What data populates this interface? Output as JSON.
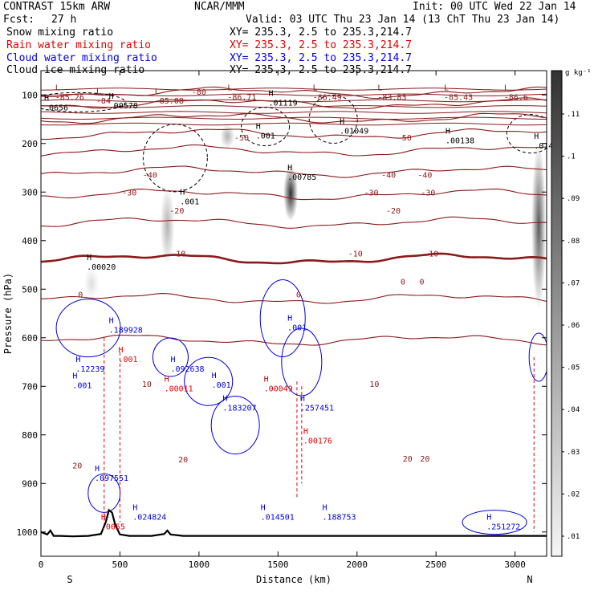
{
  "header": {
    "model": "CONTRAST 15km ARW",
    "fcst_label": "Fcst:",
    "fcst_value": "27 h",
    "center": "NCAR/MMM",
    "init": "Init: 00 UTC Wed 22 Jan 14",
    "valid": "Valid: 03 UTC Thu 23 Jan 14 (13 ChT Thu 23 Jan 14)",
    "fields": [
      {
        "name": "Snow mixing ratio",
        "xy": "",
        "color": "#000000"
      },
      {
        "name": "Rain water mixing ratio",
        "xy": "XY= 235.3, 2.5 to 235.3,214.7",
        "color": "#e00000"
      },
      {
        "name": "Cloud water mixing ratio",
        "xy": "XY= 235.3, 2.5 to 235.3,214.7",
        "color": "#0000dd"
      },
      {
        "name": "Cloud ice mixing ratio",
        "xy": "XY= 235.3, 2.5 to 235.3,214.7",
        "color": "#000000"
      }
    ],
    "snow_xy": "XY= 235.3, 2.5 to 235.3,214.7"
  },
  "colorbar": {
    "unit": "g kg⁻¹",
    "ticks": [
      ".11",
      ".1",
      ".09",
      ".08",
      ".07",
      ".06",
      ".05",
      ".04",
      ".03",
      ".02",
      ".01"
    ]
  },
  "chart_data": {
    "type": "line",
    "title": "",
    "xlabel": "Distance (km)",
    "ylabel": "Pressure (hPa)",
    "xlim": [
      0,
      3200
    ],
    "ylim": [
      1050,
      50
    ],
    "xticks": [
      0,
      500,
      1000,
      1500,
      2000,
      2500,
      3000
    ],
    "yticks": [
      100,
      200,
      300,
      400,
      500,
      600,
      700,
      800,
      900,
      1000
    ],
    "end_labels": {
      "left": "S",
      "right": "N"
    },
    "temperature_contours": {
      "color": "#8b1a1a",
      "levels": [
        {
          "label": "-80",
          "p": 95
        },
        {
          "label": "-70",
          "p": 118
        },
        {
          "label": "-60",
          "p": 148
        },
        {
          "label": "-50",
          "p": 180
        },
        {
          "label": "-40",
          "p": 215
        },
        {
          "label": "-30",
          "p": 258
        },
        {
          "label": "-20",
          "p": 305
        },
        {
          "label": "-10",
          "p": 363
        },
        {
          "label": "0",
          "p": 438,
          "bold": true
        },
        {
          "label": "10",
          "p": 520
        },
        {
          "label": "20",
          "p": 605
        }
      ],
      "label_positions": [
        {
          "text": "-80",
          "x": 1000,
          "p": 93
        },
        {
          "text": "-50",
          "x": 1270,
          "p": 187
        },
        {
          "text": "-50",
          "x": 2300,
          "p": 187
        },
        {
          "text": "-40",
          "x": 690,
          "p": 264
        },
        {
          "text": "-40",
          "x": 2200,
          "p": 264
        },
        {
          "text": "-40",
          "x": 2430,
          "p": 264
        },
        {
          "text": "-30",
          "x": 560,
          "p": 300
        },
        {
          "text": "-30",
          "x": 2090,
          "p": 300
        },
        {
          "text": "-30",
          "x": 2450,
          "p": 300
        },
        {
          "text": "-20",
          "x": 860,
          "p": 338
        },
        {
          "text": "-20",
          "x": 2230,
          "p": 338
        },
        {
          "text": "-10",
          "x": 870,
          "p": 426
        },
        {
          "text": "-10",
          "x": 1990,
          "p": 426
        },
        {
          "text": "-10",
          "x": 2470,
          "p": 426
        },
        {
          "text": "0",
          "x": 2290,
          "p": 484
        },
        {
          "text": "0",
          "x": 2410,
          "p": 484
        },
        {
          "text": "0",
          "x": 250,
          "p": 510
        },
        {
          "text": "0",
          "x": 1630,
          "p": 510
        },
        {
          "text": "10",
          "x": 670,
          "p": 695
        },
        {
          "text": "10",
          "x": 2110,
          "p": 695
        },
        {
          "text": "20",
          "x": 900,
          "p": 850
        },
        {
          "text": "20",
          "x": 230,
          "p": 862
        },
        {
          "text": "20",
          "x": 2320,
          "p": 848
        },
        {
          "text": "20",
          "x": 2430,
          "p": 848
        }
      ]
    },
    "max_labels": [
      {
        "value": "-85.26",
        "x": 90,
        "p": 100,
        "color": "#8b1a1a"
      },
      {
        "value": "-84",
        "x": 350,
        "p": 108,
        "color": "#8b1a1a"
      },
      {
        "value": "-85.08",
        "x": 720,
        "p": 108,
        "color": "#8b1a1a"
      },
      {
        "value": "-86.71",
        "x": 1180,
        "p": 100,
        "color": "#8b1a1a"
      },
      {
        "value": "-86.49",
        "x": 1720,
        "p": 100,
        "color": "#8b1a1a"
      },
      {
        "value": "-83.83",
        "x": 2130,
        "p": 100,
        "color": "#8b1a1a"
      },
      {
        "value": "-85.43",
        "x": 2550,
        "p": 100,
        "color": "#8b1a1a"
      },
      {
        "value": "-86.6",
        "x": 2930,
        "p": 100,
        "color": "#8b1a1a"
      },
      {
        "value": ".0656",
        "x": 20,
        "p": 122,
        "color": "#000000"
      },
      {
        "value": ".00578",
        "x": 430,
        "p": 118,
        "color": "#000000"
      },
      {
        "value": ".01119",
        "x": 1440,
        "p": 112,
        "color": "#000000"
      },
      {
        "value": ".01049",
        "x": 1890,
        "p": 170,
        "color": "#000000"
      },
      {
        "value": ".00138",
        "x": 2560,
        "p": 190,
        "color": "#000000"
      },
      {
        "value": ".001",
        "x": 1360,
        "p": 180,
        "color": "#000000"
      },
      {
        "value": ".014",
        "x": 3120,
        "p": 200,
        "color": "#000000"
      },
      {
        "value": ".00785",
        "x": 1560,
        "p": 265,
        "color": "#000000"
      },
      {
        "value": ".001",
        "x": 880,
        "p": 315,
        "color": "#000000"
      },
      {
        "value": ".00020",
        "x": 290,
        "p": 450,
        "color": "#000000"
      },
      {
        "value": ".189928",
        "x": 430,
        "p": 580,
        "color": "#0000dd"
      },
      {
        "value": ".12239",
        "x": 220,
        "p": 660,
        "color": "#0000dd"
      },
      {
        "value": ".001",
        "x": 200,
        "p": 694,
        "color": "#0000dd"
      },
      {
        "value": ".001",
        "x": 490,
        "p": 640,
        "color": "#e00000"
      },
      {
        "value": ".092638",
        "x": 820,
        "p": 660,
        "color": "#0000dd"
      },
      {
        "value": ".00011",
        "x": 780,
        "p": 700,
        "color": "#e00000"
      },
      {
        "value": ".001",
        "x": 1080,
        "p": 693,
        "color": "#0000dd"
      },
      {
        "value": ".183207",
        "x": 1150,
        "p": 740,
        "color": "#0000dd"
      },
      {
        "value": ".00049",
        "x": 1410,
        "p": 700,
        "color": "#e00000"
      },
      {
        "value": ".257451",
        "x": 1640,
        "p": 740,
        "color": "#0000dd"
      },
      {
        "value": ".001",
        "x": 1560,
        "p": 575,
        "color": "#0000dd"
      },
      {
        "value": ".00176",
        "x": 1660,
        "p": 808,
        "color": "#e00000"
      },
      {
        "value": ".097551",
        "x": 340,
        "p": 885,
        "color": "#0000dd"
      },
      {
        "value": ".024824",
        "x": 580,
        "p": 965,
        "color": "#0000dd"
      },
      {
        "value": ".0055",
        "x": 380,
        "p": 985,
        "color": "#e00000"
      },
      {
        "value": ".014501",
        "x": 1390,
        "p": 965,
        "color": "#0000dd"
      },
      {
        "value": ".188753",
        "x": 1780,
        "p": 965,
        "color": "#0000dd"
      },
      {
        "value": ".251272",
        "x": 2820,
        "p": 985,
        "color": "#0000dd"
      }
    ],
    "series": [
      {
        "name": "Snow mixing ratio",
        "color": "#000000"
      },
      {
        "name": "Rain water mixing ratio",
        "color": "#e00000"
      },
      {
        "name": "Cloud water mixing ratio",
        "color": "#0000dd"
      },
      {
        "name": "Cloud ice mixing ratio",
        "color": "#000000"
      }
    ],
    "cloud_ice_shading": [
      {
        "x": 1180,
        "p_top": 160,
        "p_bot": 210,
        "intensity": 0.35
      },
      {
        "x": 1580,
        "p_top": 245,
        "p_bot": 360,
        "intensity": 0.95
      },
      {
        "x": 800,
        "p_top": 290,
        "p_bot": 450,
        "intensity": 0.35
      },
      {
        "x": 320,
        "p_top": 455,
        "p_bot": 520,
        "intensity": 0.15
      },
      {
        "x": 3150,
        "p_top": 200,
        "p_bot": 540,
        "intensity": 0.75
      }
    ],
    "terrain": {
      "x": [
        0,
        40,
        60,
        80,
        120,
        200,
        300,
        380,
        410,
        430,
        450,
        470,
        500,
        560,
        700,
        780,
        800,
        820,
        900,
        1200,
        1600,
        2000,
        2400,
        2800,
        3200
      ],
      "p": [
        1000,
        1005,
        997,
        1008,
        1008,
        1009,
        1008,
        1004,
        980,
        955,
        960,
        985,
        1005,
        1008,
        1008,
        1004,
        997,
        1005,
        1008,
        1008,
        1008,
        1008,
        1008,
        1008,
        1008
      ]
    }
  }
}
